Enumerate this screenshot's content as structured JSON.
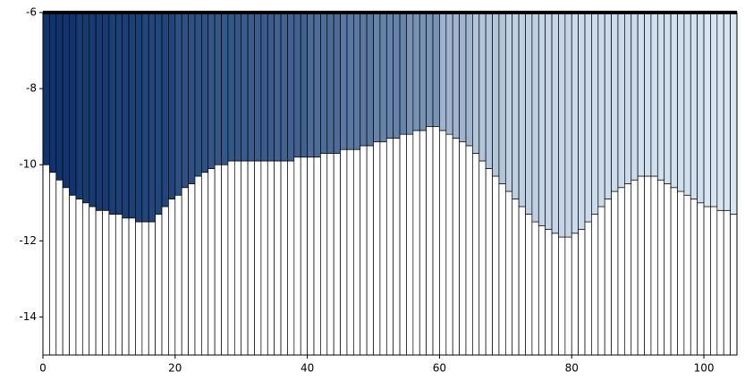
{
  "chart_data": {
    "type": "cross-section",
    "x": [
      0,
      1,
      2,
      3,
      4,
      5,
      6,
      7,
      8,
      9,
      10,
      11,
      12,
      13,
      14,
      15,
      16,
      17,
      18,
      19,
      20,
      21,
      22,
      23,
      24,
      25,
      26,
      27,
      28,
      29,
      30,
      31,
      32,
      33,
      34,
      35,
      36,
      37,
      38,
      39,
      40,
      41,
      42,
      43,
      44,
      45,
      46,
      47,
      48,
      49,
      50,
      51,
      52,
      53,
      54,
      55,
      56,
      57,
      58,
      59,
      60,
      61,
      62,
      63,
      64,
      65,
      66,
      67,
      68,
      69,
      70,
      71,
      72,
      73,
      74,
      75,
      76,
      77,
      78,
      79,
      80,
      81,
      82,
      83,
      84,
      85,
      86,
      87,
      88,
      89,
      90,
      91,
      92,
      93,
      94,
      95,
      96,
      97,
      98,
      99,
      100,
      101,
      102,
      103,
      104
    ],
    "bottom": [
      -10.0,
      -10.2,
      -10.4,
      -10.6,
      -10.8,
      -10.9,
      -11.0,
      -11.1,
      -11.2,
      -11.2,
      -11.3,
      -11.3,
      -11.4,
      -11.4,
      -11.5,
      -11.5,
      -11.5,
      -11.3,
      -11.1,
      -10.9,
      -10.8,
      -10.6,
      -10.5,
      -10.3,
      -10.2,
      -10.1,
      -10.0,
      -10.0,
      -9.9,
      -9.9,
      -9.9,
      -9.9,
      -9.9,
      -9.9,
      -9.9,
      -9.9,
      -9.9,
      -9.9,
      -9.8,
      -9.8,
      -9.8,
      -9.8,
      -9.7,
      -9.7,
      -9.7,
      -9.6,
      -9.6,
      -9.6,
      -9.5,
      -9.5,
      -9.4,
      -9.4,
      -9.3,
      -9.3,
      -9.2,
      -9.2,
      -9.1,
      -9.1,
      -9.0,
      -9.0,
      -9.1,
      -9.2,
      -9.3,
      -9.4,
      -9.5,
      -9.7,
      -9.9,
      -10.1,
      -10.3,
      -10.5,
      -10.7,
      -10.9,
      -11.1,
      -11.3,
      -11.5,
      -11.6,
      -11.7,
      -11.8,
      -11.9,
      -11.9,
      -11.8,
      -11.7,
      -11.5,
      -11.3,
      -11.1,
      -10.9,
      -10.7,
      -10.6,
      -10.5,
      -10.4,
      -10.3,
      -10.3,
      -10.3,
      -10.4,
      -10.5,
      -10.6,
      -10.7,
      -10.8,
      -10.9,
      -11.0,
      -11.1,
      -11.1,
      -11.2,
      -11.2,
      -11.3
    ],
    "values": [
      -6.3,
      -6.3,
      -6.3,
      -6.3,
      -6.3,
      -6.4,
      -6.4,
      -6.4,
      -6.4,
      -6.4,
      -6.5,
      -6.5,
      -6.5,
      -6.5,
      -6.5,
      -6.6,
      -6.6,
      -6.6,
      -6.6,
      -6.6,
      -6.8,
      -6.8,
      -6.8,
      -6.8,
      -6.8,
      -6.9,
      -6.9,
      -6.9,
      -6.9,
      -6.9,
      -7.0,
      -7.0,
      -7.0,
      -7.0,
      -7.0,
      -7.1,
      -7.1,
      -7.1,
      -7.1,
      -7.1,
      -7.3,
      -7.3,
      -7.3,
      -7.3,
      -7.3,
      -7.5,
      -7.5,
      -7.5,
      -7.5,
      -7.5,
      -7.7,
      -7.7,
      -7.7,
      -7.7,
      -7.7,
      -8.0,
      -8.0,
      -8.0,
      -8.0,
      -8.0,
      -8.6,
      -8.6,
      -8.6,
      -8.6,
      -8.6,
      -8.9,
      -8.9,
      -8.9,
      -8.9,
      -8.9,
      -9.1,
      -9.1,
      -9.1,
      -9.1,
      -9.1,
      -9.2,
      -9.2,
      -9.2,
      -9.2,
      -9.2,
      -9.3,
      -9.3,
      -9.3,
      -9.3,
      -9.3,
      -9.3,
      -9.3,
      -9.3,
      -9.3,
      -9.3,
      -9.4,
      -9.4,
      -9.4,
      -9.4,
      -9.4,
      -9.4,
      -9.4,
      -9.4,
      -9.4,
      -9.4,
      -9.5,
      -9.5,
      -9.5,
      -9.5,
      -9.5
    ],
    "colormap": [
      "#deebf7",
      "#08306b"
    ],
    "clim": [
      -9.6,
      -6.2
    ],
    "xlim": [
      0,
      105
    ],
    "xticks": [
      0,
      20,
      40,
      60,
      80,
      100
    ],
    "ylim": [
      -15,
      -6
    ],
    "yticks": [
      -14,
      -12,
      -10,
      -8,
      -6
    ]
  }
}
